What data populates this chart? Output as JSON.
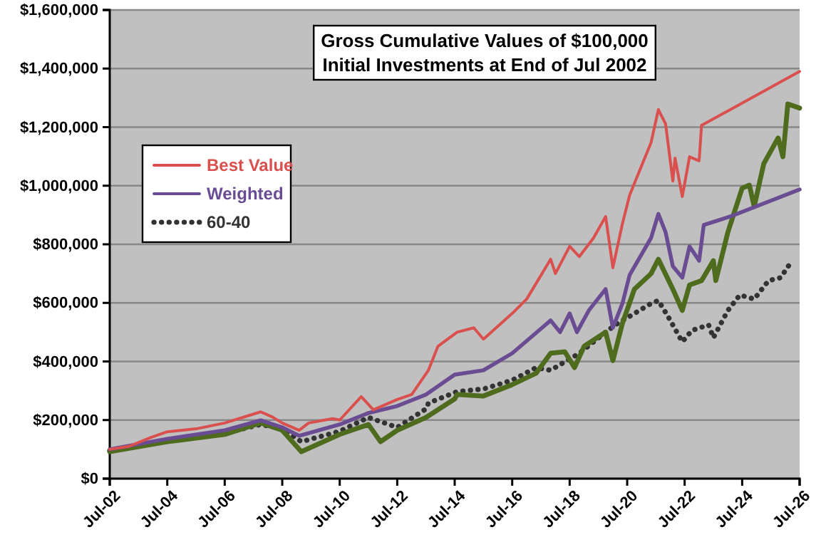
{
  "chart_data": {
    "type": "line",
    "title": "Gross Cumulative Values of $100,000\nInitial Investments at End of Jul 2002",
    "xlim": [
      "2002-07",
      "2026-07"
    ],
    "xticks": [
      {
        "value": "2002-07",
        "label": "Jul-02"
      },
      {
        "value": "2004-07",
        "label": "Jul-04"
      },
      {
        "value": "2006-07",
        "label": "Jul-06"
      },
      {
        "value": "2008-07",
        "label": "Jul-08"
      },
      {
        "value": "2010-07",
        "label": "Jul-10"
      },
      {
        "value": "2012-07",
        "label": "Jul-12"
      },
      {
        "value": "2014-07",
        "label": "Jul-14"
      },
      {
        "value": "2016-07",
        "label": "Jul-16"
      },
      {
        "value": "2018-07",
        "label": "Jul-18"
      },
      {
        "value": "2020-07",
        "label": "Jul-20"
      },
      {
        "value": "2022-07",
        "label": "Jul-22"
      },
      {
        "value": "2024-07",
        "label": "Jul-24"
      },
      {
        "value": "2026-07",
        "label": "Jul-26"
      }
    ],
    "ylim": [
      0,
      1600000
    ],
    "yticks": [
      {
        "value": 0,
        "label": "$0"
      },
      {
        "value": 200000,
        "label": "$200,000"
      },
      {
        "value": 400000,
        "label": "$400,000"
      },
      {
        "value": 600000,
        "label": "$600,000"
      },
      {
        "value": 800000,
        "label": "$800,000"
      },
      {
        "value": 1000000,
        "label": "$1,000,000"
      },
      {
        "value": 1200000,
        "label": "$1,200,000"
      },
      {
        "value": 1400000,
        "label": "$1,400,000"
      },
      {
        "value": 1600000,
        "label": "$1,600,000"
      }
    ],
    "grid": "y",
    "legend": "left",
    "marker": "none",
    "series": [
      {
        "name": "Best Value",
        "color": "#d9504e",
        "line_style": "solid",
        "x": [
          "2002-07",
          "2003-03",
          "2003-12",
          "2004-07",
          "2005-07",
          "2006-07",
          "2007-10",
          "2008-03",
          "2008-07",
          "2009-02",
          "2009-06",
          "2010-04",
          "2010-07",
          "2011-04",
          "2011-09",
          "2012-07",
          "2013-01",
          "2013-08",
          "2013-12",
          "2014-08",
          "2015-03",
          "2015-07",
          "2016-07",
          "2017-01",
          "2017-11",
          "2018-01",
          "2018-07",
          "2018-11",
          "2019-05",
          "2019-10",
          "2020-01",
          "2020-05",
          "2020-08",
          "2021-05",
          "2021-08",
          "2021-11",
          "2022-02",
          "2022-03",
          "2022-06",
          "2022-09",
          "2023-01",
          "2023-02",
          "2026-07"
        ],
        "values": [
          100000,
          110000,
          140000,
          160000,
          170000,
          190000,
          228000,
          210000,
          190000,
          165000,
          190000,
          205000,
          200000,
          280000,
          235000,
          270000,
          287000,
          370000,
          452000,
          500000,
          515000,
          476000,
          564000,
          613000,
          749000,
          700000,
          793000,
          758000,
          822000,
          895000,
          720000,
          870000,
          968000,
          1148000,
          1260000,
          1211000,
          1016000,
          1094000,
          963000,
          1099000,
          1085000,
          1206000,
          1390000
        ]
      },
      {
        "name": "Weighted",
        "color": "#6a4c93",
        "line_style": "solid",
        "x": [
          "2002-07",
          "2004-07",
          "2006-07",
          "2007-10",
          "2008-07",
          "2009-02",
          "2010-07",
          "2011-07",
          "2012-07",
          "2013-07",
          "2014-07",
          "2015-07",
          "2016-07",
          "2017-11",
          "2018-03",
          "2018-07",
          "2018-10",
          "2019-03",
          "2019-10",
          "2020-01",
          "2020-05",
          "2020-08",
          "2021-05",
          "2021-08",
          "2021-11",
          "2022-02",
          "2022-06",
          "2022-09",
          "2023-01",
          "2023-03",
          "2024-02",
          "2026-07"
        ],
        "values": [
          100000,
          136000,
          165000,
          199000,
          175000,
          146000,
          185000,
          224000,
          248000,
          287000,
          355000,
          370000,
          428000,
          540000,
          500000,
          564000,
          500000,
          574000,
          647000,
          515000,
          598000,
          695000,
          822000,
          904000,
          841000,
          725000,
          686000,
          793000,
          744000,
          866000,
          895000,
          987000
        ]
      },
      {
        "name": "60-40",
        "color": "#333333",
        "line_style": "dotted",
        "x": [
          "2002-07",
          "2004-07",
          "2006-07",
          "2007-10",
          "2008-07",
          "2009-03",
          "2010-07",
          "2011-07",
          "2012-07",
          "2013-07",
          "2013-08",
          "2014-08",
          "2015-07",
          "2016-07",
          "2017-05",
          "2017-11",
          "2018-11",
          "2019-10",
          "2020-03",
          "2020-08",
          "2021-05",
          "2021-08",
          "2021-12",
          "2022-06",
          "2022-10",
          "2023-05",
          "2023-07",
          "2024-01",
          "2024-06",
          "2024-12",
          "2025-06",
          "2025-11",
          "2026-03"
        ],
        "values": [
          95000,
          130000,
          155000,
          185000,
          170000,
          126000,
          162000,
          209000,
          175000,
          238000,
          258000,
          297000,
          306000,
          336000,
          379000,
          370000,
          428000,
          500000,
          530000,
          554000,
          598000,
          608000,
          554000,
          467000,
          506000,
          525000,
          481000,
          574000,
          627000,
          613000,
          676000,
          686000,
          734000
        ]
      },
      {
        "color": "#4e6b1e",
        "line_style": "solid",
        "x": [
          "2002-07",
          "2004-07",
          "2006-07",
          "2007-10",
          "2008-07",
          "2009-03",
          "2010-07",
          "2011-07",
          "2011-12",
          "2012-07",
          "2013-07",
          "2014-07",
          "2014-08",
          "2015-07",
          "2016-07",
          "2017-05",
          "2017-11",
          "2018-05",
          "2018-09",
          "2019-01",
          "2019-10",
          "2020-01",
          "2020-05",
          "2020-10",
          "2021-05",
          "2021-08",
          "2022-02",
          "2022-06",
          "2022-09",
          "2023-02",
          "2023-07",
          "2023-08",
          "2024-01",
          "2024-07",
          "2024-10",
          "2024-12",
          "2025-04",
          "2025-10",
          "2025-12",
          "2026-02",
          "2026-07"
        ],
        "values": [
          92000,
          126000,
          151000,
          190000,
          165000,
          92000,
          151000,
          185000,
          126000,
          165000,
          209000,
          272000,
          287000,
          282000,
          321000,
          360000,
          428000,
          433000,
          379000,
          452000,
          500000,
          403000,
          530000,
          647000,
          700000,
          749000,
          647000,
          574000,
          661000,
          676000,
          744000,
          676000,
          841000,
          992000,
          1002000,
          929000,
          1075000,
          1163000,
          1099000,
          1279000,
          1265000
        ]
      }
    ]
  }
}
